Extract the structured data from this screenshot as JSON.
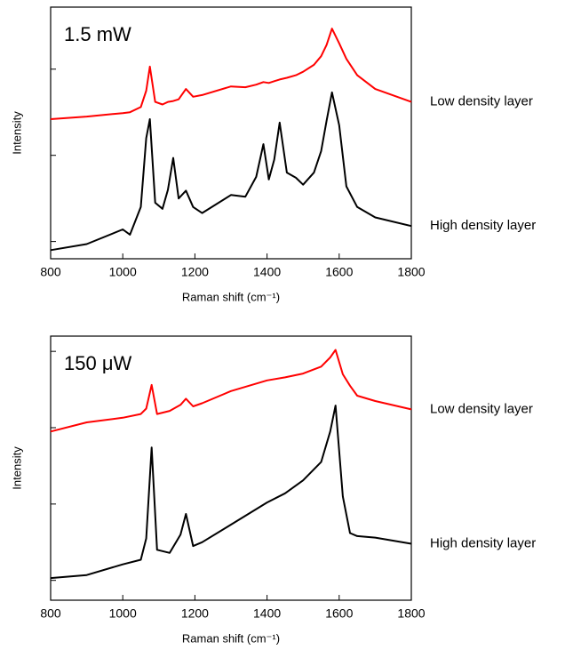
{
  "chart_data": [
    {
      "type": "line",
      "annotation": "1.5 mW",
      "xlabel": "Raman shift (cm⁻¹)",
      "ylabel": "Intensity",
      "xlim": [
        800,
        1800
      ],
      "xticks": [
        800,
        1000,
        1200,
        1400,
        1600,
        1800
      ],
      "ylim": [
        -0.2,
        2.72
      ],
      "yticks": [
        0,
        1,
        2
      ],
      "x": [
        800,
        900,
        1000,
        1020,
        1050,
        1065,
        1075,
        1090,
        1110,
        1125,
        1140,
        1155,
        1175,
        1195,
        1220,
        1300,
        1340,
        1370,
        1390,
        1405,
        1420,
        1435,
        1455,
        1480,
        1500,
        1530,
        1550,
        1565,
        1580,
        1600,
        1620,
        1650,
        1700,
        1800
      ],
      "series": [
        {
          "name": "Low density layer",
          "color": "#ff0000",
          "values": [
            1.42,
            1.45,
            1.49,
            1.5,
            1.56,
            1.75,
            2.03,
            1.62,
            1.59,
            1.62,
            1.63,
            1.65,
            1.77,
            1.68,
            1.7,
            1.8,
            1.79,
            1.82,
            1.85,
            1.84,
            1.86,
            1.88,
            1.9,
            1.93,
            1.97,
            2.05,
            2.15,
            2.28,
            2.47,
            2.3,
            2.12,
            1.93,
            1.77,
            1.62
          ]
        },
        {
          "name": "High density layer",
          "color": "#000000",
          "values": [
            -0.1,
            -0.03,
            0.14,
            0.08,
            0.4,
            1.2,
            1.42,
            0.45,
            0.38,
            0.6,
            0.97,
            0.5,
            0.59,
            0.4,
            0.33,
            0.54,
            0.52,
            0.75,
            1.13,
            0.72,
            0.95,
            1.38,
            0.8,
            0.74,
            0.66,
            0.8,
            1.05,
            1.4,
            1.73,
            1.35,
            0.64,
            0.4,
            0.28,
            0.18
          ]
        }
      ]
    },
    {
      "type": "line",
      "annotation": "150 μW",
      "xlabel": "Raman shift (cm⁻¹)",
      "ylabel": "Intensity",
      "xlim": [
        800,
        1800
      ],
      "xticks": [
        800,
        1000,
        1200,
        1400,
        1600,
        1800
      ],
      "ylim": [
        -0.26,
        3.2
      ],
      "yticks": [
        0,
        1,
        2,
        3
      ],
      "x": [
        800,
        900,
        1000,
        1050,
        1065,
        1080,
        1095,
        1130,
        1160,
        1175,
        1195,
        1220,
        1300,
        1400,
        1450,
        1500,
        1550,
        1575,
        1590,
        1610,
        1630,
        1650,
        1700,
        1800
      ],
      "series": [
        {
          "name": "Low density layer",
          "color": "#ff0000",
          "values": [
            1.95,
            2.07,
            2.13,
            2.18,
            2.25,
            2.56,
            2.18,
            2.22,
            2.3,
            2.38,
            2.28,
            2.32,
            2.48,
            2.62,
            2.66,
            2.71,
            2.8,
            2.92,
            3.02,
            2.7,
            2.55,
            2.42,
            2.35,
            2.24
          ]
        },
        {
          "name": "High density layer",
          "color": "#000000",
          "values": [
            0.03,
            0.07,
            0.21,
            0.27,
            0.55,
            1.74,
            0.4,
            0.36,
            0.6,
            0.87,
            0.45,
            0.5,
            0.73,
            1.02,
            1.14,
            1.31,
            1.55,
            1.95,
            2.29,
            1.1,
            0.62,
            0.58,
            0.56,
            0.48
          ]
        }
      ]
    }
  ]
}
